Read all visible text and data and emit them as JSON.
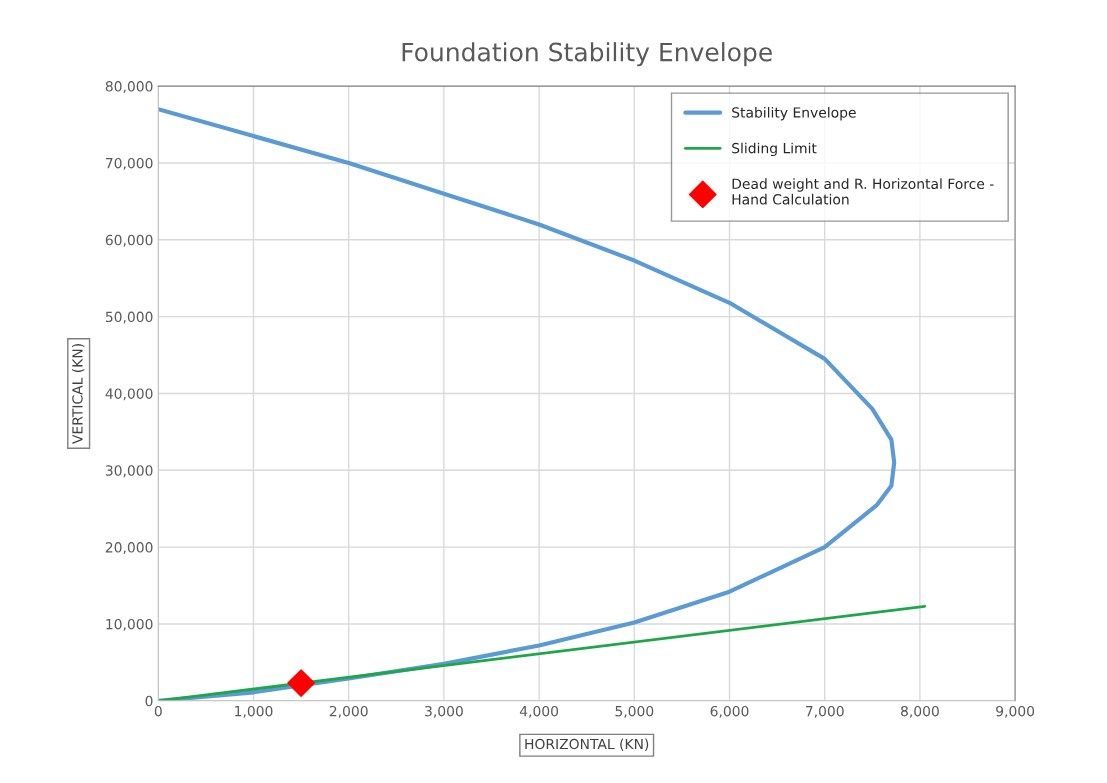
{
  "chart_data": {
    "type": "line",
    "title": "Foundation Stability Envelope",
    "xlabel": "HORIZONTAL (KN)",
    "ylabel": "VERTICAL (KN)",
    "xlim": [
      0,
      9000
    ],
    "ylim": [
      0,
      80000
    ],
    "xticks": [
      {
        "value": 0,
        "label": "0"
      },
      {
        "value": 1000,
        "label": "1,000"
      },
      {
        "value": 2000,
        "label": "2,000"
      },
      {
        "value": 3000,
        "label": "3,000"
      },
      {
        "value": 4000,
        "label": "4,000"
      },
      {
        "value": 5000,
        "label": "5,000"
      },
      {
        "value": 6000,
        "label": "6,000"
      },
      {
        "value": 7000,
        "label": "7,000"
      },
      {
        "value": 8000,
        "label": "8,000"
      },
      {
        "value": 9000,
        "label": "9,000"
      }
    ],
    "yticks": [
      {
        "value": 0,
        "label": "0"
      },
      {
        "value": 10000,
        "label": "10,000"
      },
      {
        "value": 20000,
        "label": "20,000"
      },
      {
        "value": 30000,
        "label": "30,000"
      },
      {
        "value": 40000,
        "label": "40,000"
      },
      {
        "value": 50000,
        "label": "50,000"
      },
      {
        "value": 60000,
        "label": "60,000"
      },
      {
        "value": 70000,
        "label": "70,000"
      },
      {
        "value": 80000,
        "label": "80,000"
      }
    ],
    "grid": true,
    "legend": "top right",
    "series": [
      {
        "name": "Stability Envelope",
        "color": "#5b9bd5",
        "x": [
          0,
          1000,
          2000,
          3000,
          4000,
          5000,
          6000,
          7000,
          7500,
          7700,
          7730,
          7700,
          7550,
          7000,
          6000,
          5000,
          4000,
          3000,
          2000,
          1000,
          0
        ],
        "values": [
          77000,
          73500,
          70000,
          66000,
          62000,
          57300,
          51800,
          44500,
          38000,
          34000,
          31000,
          28000,
          25500,
          20000,
          14200,
          10200,
          7200,
          4800,
          2900,
          1100,
          0
        ]
      },
      {
        "name": "Sliding Limit",
        "color": "#1fa64a",
        "x": [
          0,
          8050
        ],
        "values": [
          0,
          12300
        ]
      },
      {
        "name": "Dead weight and R. Horizontal Force - Hand Calculation",
        "color": "#ff0000",
        "type": "scatter",
        "marker": "diamond",
        "x": [
          1500
        ],
        "values": [
          2300
        ]
      }
    ]
  }
}
